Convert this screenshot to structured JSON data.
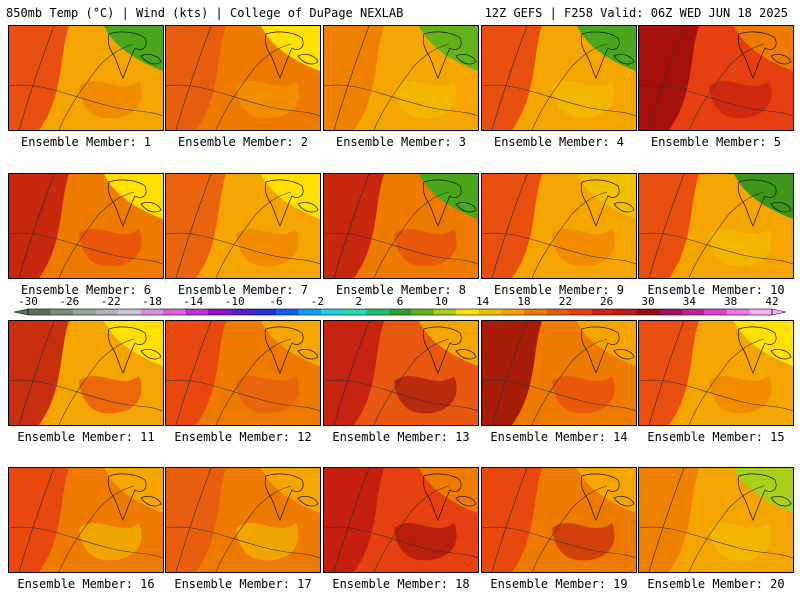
{
  "header": {
    "left": "850mb Temp (°C) | Wind (kts) | College of DuPage NEXLAB",
    "right": "12Z GEFS | F258 Valid: 06Z WED JUN 18 2025"
  },
  "panels": [
    {
      "label": "Ensemble Member: 1",
      "base": "#f5a500",
      "west": "#e64010",
      "northeast": "#4aa61a",
      "hot": "#ee7a00"
    },
    {
      "label": "Ensemble Member: 2",
      "base": "#ee7a00",
      "west": "#e85810",
      "northeast": "#ffe000",
      "hot": "#f59a00"
    },
    {
      "label": "Ensemble Member: 3",
      "base": "#f5a500",
      "west": "#ee7a00",
      "northeast": "#62b31a",
      "hot": "#f0c000"
    },
    {
      "label": "Ensemble Member: 4",
      "base": "#f5a500",
      "west": "#e64010",
      "northeast": "#4aa61a",
      "hot": "#f0c000"
    },
    {
      "label": "Ensemble Member: 5",
      "base": "#e64010",
      "west": "#9a0a0a",
      "northeast": "#ee7a00",
      "hot": "#bf1a10"
    },
    {
      "label": "Ensemble Member: 6",
      "base": "#ee7a00",
      "west": "#bf1a10",
      "northeast": "#ffe000",
      "hot": "#e64010"
    },
    {
      "label": "Ensemble Member: 7",
      "base": "#f5a500",
      "west": "#e85810",
      "northeast": "#ffe000",
      "hot": "#ee7a00"
    },
    {
      "label": "Ensemble Member: 8",
      "base": "#ee7a00",
      "west": "#bf1a10",
      "northeast": "#4aa61a",
      "hot": "#e64010"
    },
    {
      "label": "Ensemble Member: 9",
      "base": "#f5a500",
      "west": "#e64010",
      "northeast": "#f0c000",
      "hot": "#ee7a00"
    },
    {
      "label": "Ensemble Member: 10",
      "base": "#f5a500",
      "west": "#e64010",
      "northeast": "#3f961a",
      "hot": "#f0c000"
    },
    {
      "label": "Ensemble Member: 11",
      "base": "#f5a500",
      "west": "#bf1a10",
      "northeast": "#ffe000",
      "hot": "#e64010"
    },
    {
      "label": "Ensemble Member: 12",
      "base": "#ee7a00",
      "west": "#e64010",
      "northeast": "#f5a500",
      "hot": "#e85810"
    },
    {
      "label": "Ensemble Member: 13",
      "base": "#e85810",
      "west": "#bf1a10",
      "northeast": "#f5a500",
      "hot": "#9a0a0a"
    },
    {
      "label": "Ensemble Member: 14",
      "base": "#ee7a00",
      "west": "#9a0a0a",
      "northeast": "#f5a500",
      "hot": "#e64010"
    },
    {
      "label": "Ensemble Member: 15",
      "base": "#f5a500",
      "west": "#e64010",
      "northeast": "#ffe000",
      "hot": "#ee7a00"
    },
    {
      "label": "Ensemble Member: 16",
      "base": "#ee7a00",
      "west": "#e64010",
      "northeast": "#f5a500",
      "hot": "#f0c000"
    },
    {
      "label": "Ensemble Member: 17",
      "base": "#ee7a00",
      "west": "#e85810",
      "northeast": "#f5a500",
      "hot": "#f0c000"
    },
    {
      "label": "Ensemble Member: 18",
      "base": "#e64010",
      "west": "#bf1a10",
      "northeast": "#ee7a00",
      "hot": "#9a0a0a"
    },
    {
      "label": "Ensemble Member: 19",
      "base": "#ee7a00",
      "west": "#e64010",
      "northeast": "#f5a500",
      "hot": "#bf1a10"
    },
    {
      "label": "Ensemble Member: 20",
      "base": "#f5a500",
      "west": "#ee7a00",
      "northeast": "#a8d01a",
      "hot": "#f0c000"
    }
  ],
  "colorbar": {
    "ticks": [
      "-30",
      "-26",
      "-22",
      "-18",
      "-14",
      "-10",
      "-6",
      "-2",
      "2",
      "6",
      "10",
      "14",
      "18",
      "22",
      "26",
      "30",
      "34",
      "38",
      "42"
    ],
    "colors": [
      "#5a6e5a",
      "#7e8e7e",
      "#9aa59a",
      "#b0b0b8",
      "#c8c8d8",
      "#d890e0",
      "#e060e0",
      "#c030d8",
      "#9010c8",
      "#5020c8",
      "#2030d8",
      "#1060f0",
      "#10a0f0",
      "#20d0e0",
      "#20e0b0",
      "#20c070",
      "#30a030",
      "#62b31a",
      "#a8d01a",
      "#ffe000",
      "#f0c000",
      "#f5a500",
      "#ee7a00",
      "#e85810",
      "#e64010",
      "#d02010",
      "#bf1a10",
      "#9a0a0a",
      "#a01060",
      "#c020a0",
      "#e040d0",
      "#f070f0",
      "#f8b0f8"
    ]
  }
}
